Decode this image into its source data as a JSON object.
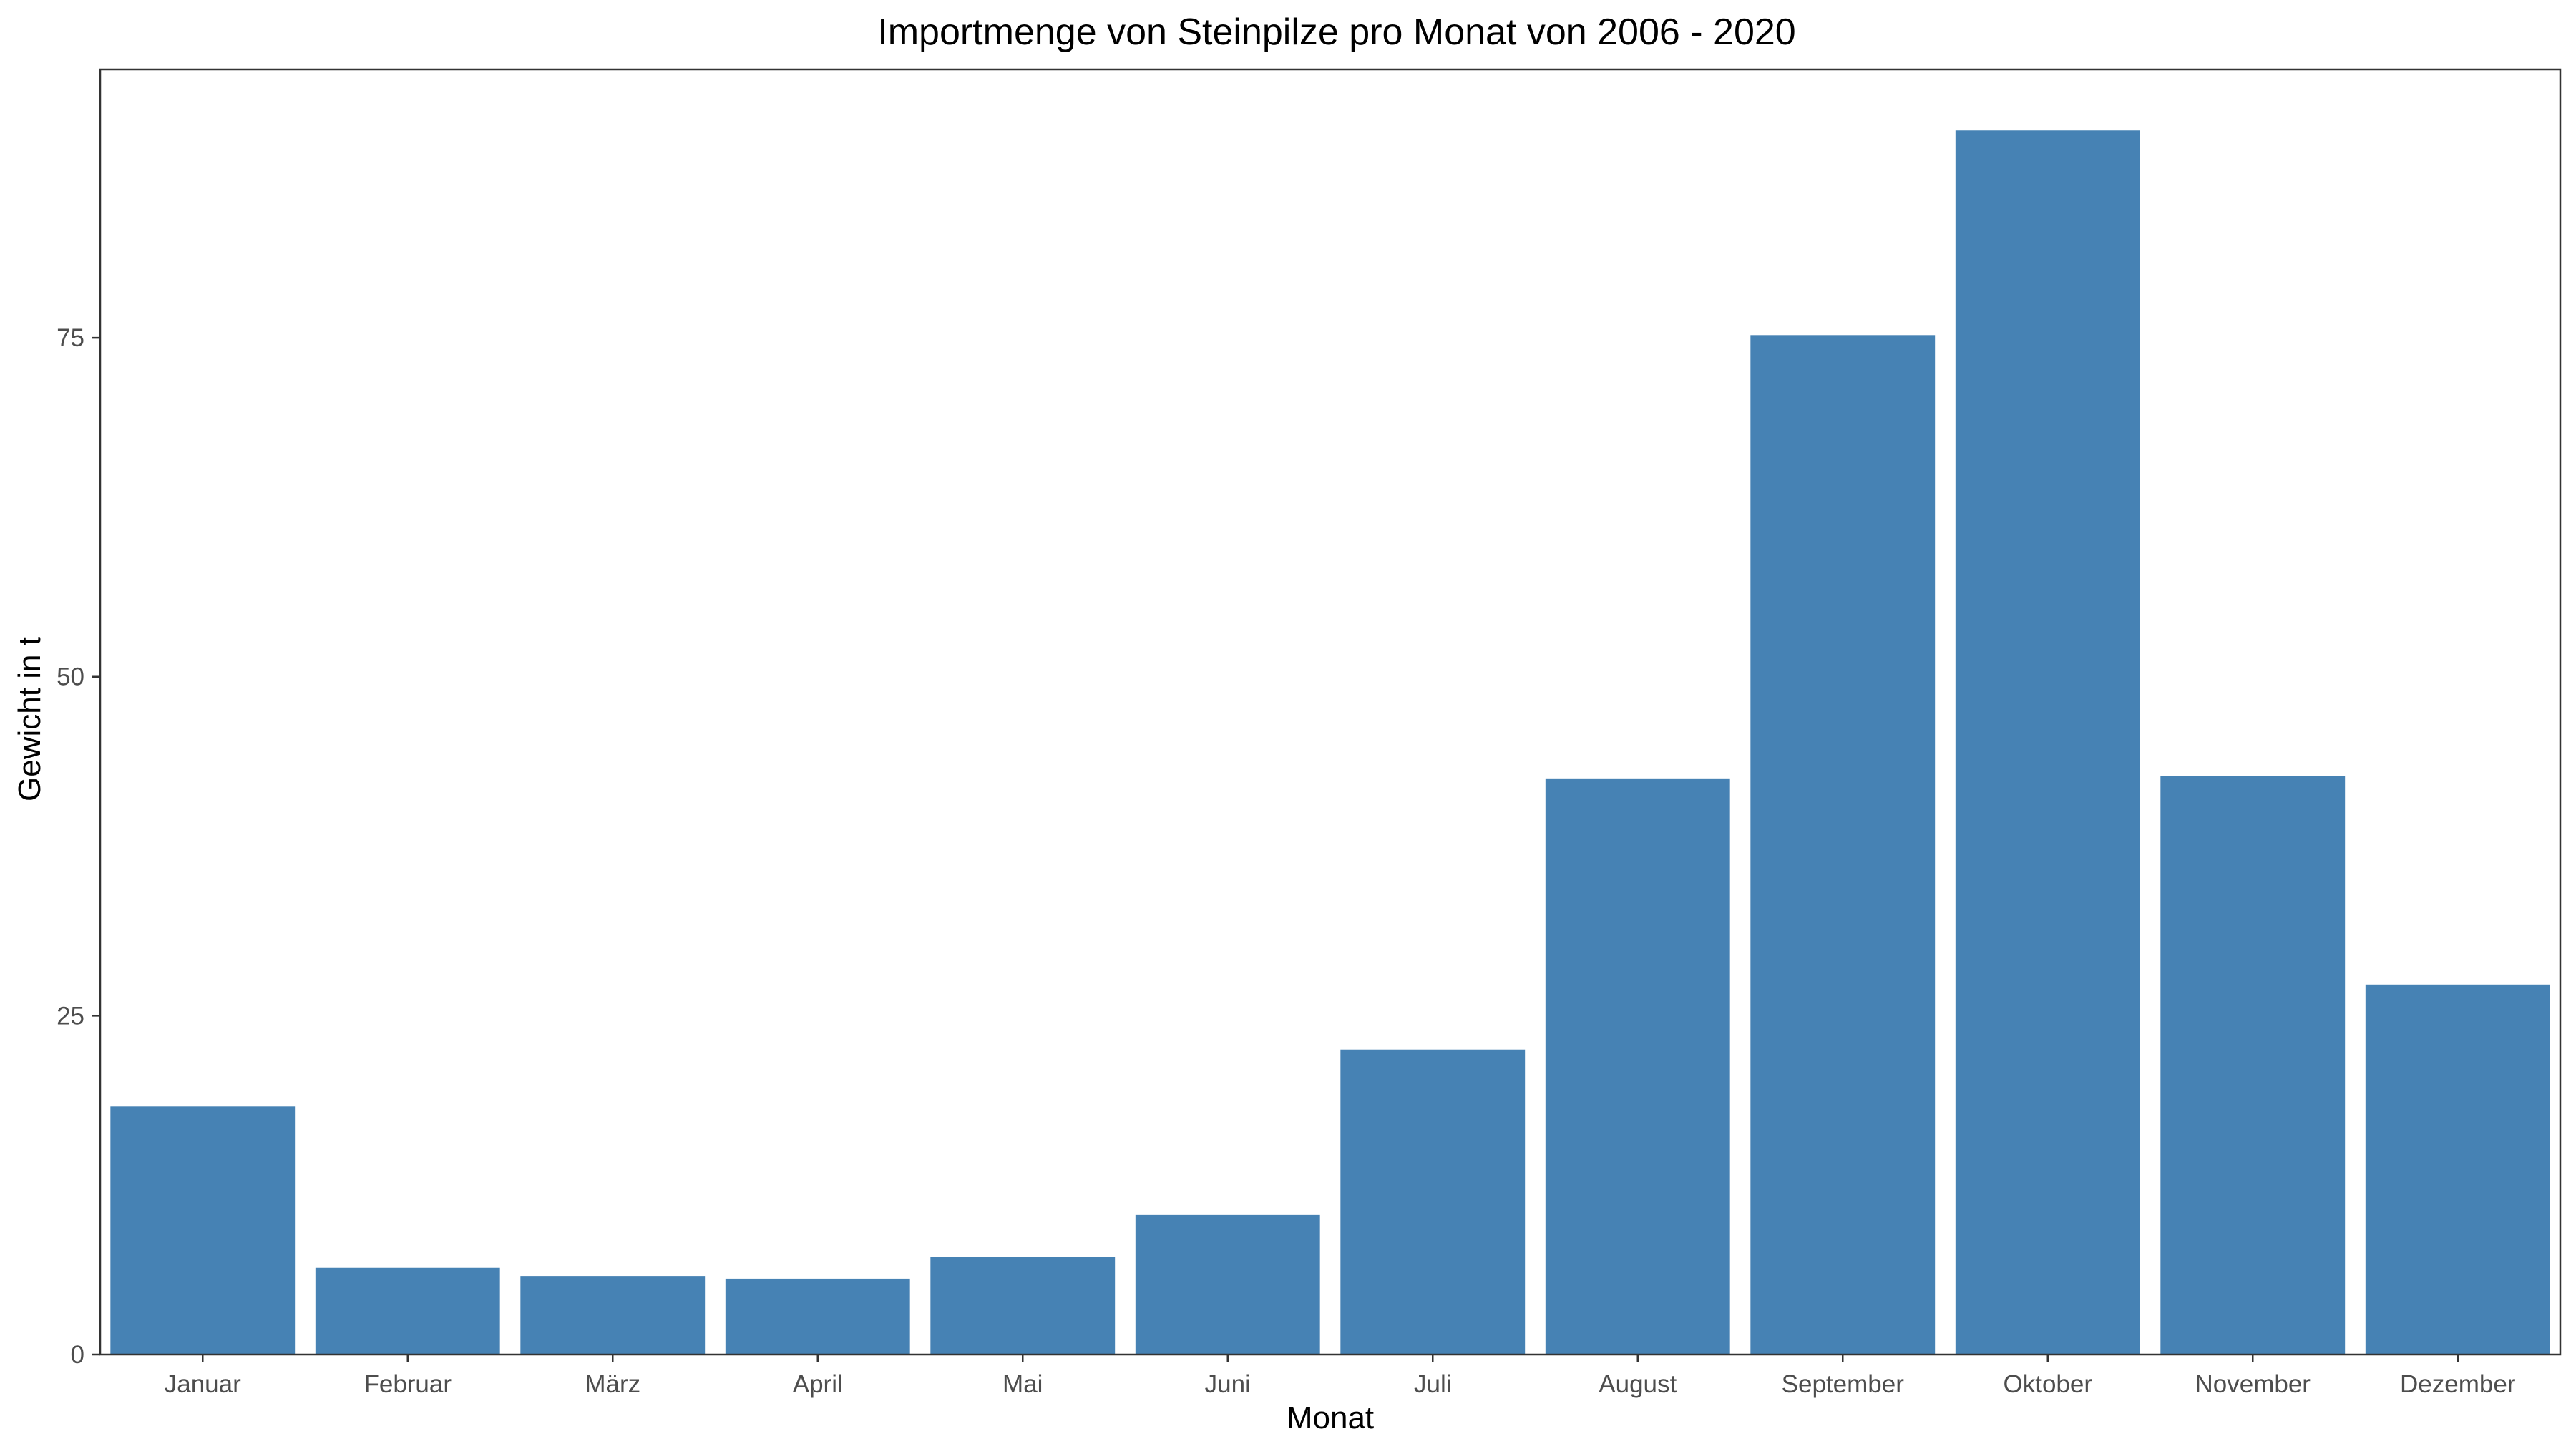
{
  "chart_data": {
    "type": "bar",
    "title": "Importmenge von Steinpilze pro Monat von 2006 - 2020",
    "xlabel": "Monat",
    "ylabel": "Gewicht in t",
    "categories": [
      "Januar",
      "Februar",
      "März",
      "April",
      "Mai",
      "Juni",
      "Juli",
      "August",
      "September",
      "Oktober",
      "November",
      "Dezember"
    ],
    "values": [
      18.3,
      6.4,
      5.8,
      5.6,
      7.2,
      10.3,
      22.5,
      42.5,
      75.2,
      90.3,
      42.7,
      27.3
    ],
    "ylim": [
      0,
      94.8
    ],
    "yticks": [
      0,
      25,
      50,
      75
    ],
    "grid": false,
    "legend": "none",
    "bar_color": "#4682b4"
  }
}
